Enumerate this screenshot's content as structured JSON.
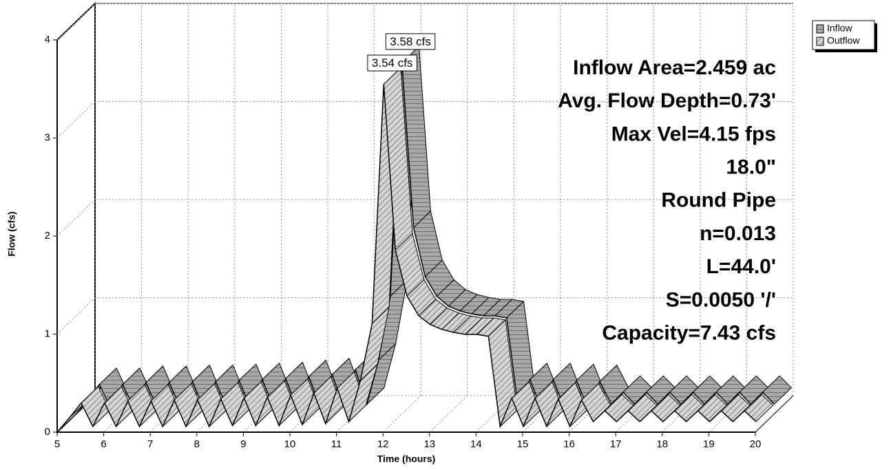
{
  "chart_data": {
    "type": "ribbon3d",
    "xlabel": "Time (hours)",
    "ylabel": "Flow (cfs)",
    "x": [
      5,
      5.25,
      5.5,
      5.75,
      6,
      6.25,
      6.5,
      6.75,
      7,
      7.25,
      7.5,
      7.75,
      8,
      8.25,
      8.5,
      8.75,
      9,
      9.25,
      9.5,
      9.75,
      10,
      10.25,
      10.5,
      10.75,
      11,
      11.25,
      11.5,
      11.75,
      12,
      12.25,
      12.5,
      12.75,
      13,
      13.25,
      13.5,
      13.75,
      14,
      14.25,
      14.5,
      14.75,
      15,
      15.25,
      15.5,
      15.75,
      16,
      16.25,
      16.5,
      16.75,
      17,
      17.25,
      17.5,
      17.75,
      18,
      18.25,
      18.5,
      18.75,
      19,
      19.25,
      19.5,
      19.75,
      20
    ],
    "series": [
      {
        "name": "Inflow",
        "color": "#a8a8a8",
        "peak_label": "3.58 cfs",
        "values": [
          0,
          0.15,
          0.3,
          0.05,
          0.3,
          0.05,
          0.32,
          0.05,
          0.32,
          0.05,
          0.33,
          0.05,
          0.33,
          0.05,
          0.34,
          0.06,
          0.35,
          0.06,
          0.36,
          0.06,
          0.38,
          0.07,
          0.4,
          0.08,
          0.45,
          0.1,
          0.55,
          1.2,
          3.58,
          1.9,
          1.4,
          1.2,
          1.1,
          1.05,
          1.02,
          1,
          1,
          0.98,
          0.05,
          0.35,
          0.05,
          0.35,
          0.05,
          0.34,
          0.05,
          0.33,
          0.1,
          0.22,
          0.1,
          0.22,
          0.1,
          0.22,
          0.1,
          0.22,
          0.1,
          0.22,
          0.1,
          0.22,
          0.1,
          0.22,
          0.1
        ]
      },
      {
        "name": "Outflow",
        "color": "#d4d4d4",
        "peak_label": "3.54 cfs",
        "values": [
          0,
          0.14,
          0.29,
          0.05,
          0.29,
          0.05,
          0.31,
          0.05,
          0.31,
          0.05,
          0.32,
          0.05,
          0.32,
          0.05,
          0.33,
          0.06,
          0.34,
          0.06,
          0.35,
          0.06,
          0.37,
          0.07,
          0.39,
          0.08,
          0.44,
          0.1,
          0.52,
          1.1,
          3.54,
          1.85,
          1.38,
          1.18,
          1.09,
          1.04,
          1.01,
          0.99,
          0.99,
          0.97,
          0.05,
          0.34,
          0.05,
          0.34,
          0.05,
          0.33,
          0.05,
          0.32,
          0.1,
          0.21,
          0.1,
          0.21,
          0.1,
          0.21,
          0.1,
          0.21,
          0.1,
          0.21,
          0.1,
          0.21,
          0.1,
          0.21,
          0.1
        ]
      }
    ],
    "xlim": [
      5,
      20
    ],
    "xticks": [
      5,
      6,
      7,
      8,
      9,
      10,
      11,
      12,
      13,
      14,
      15,
      16,
      17,
      18,
      19,
      20
    ],
    "ylim": [
      0,
      4
    ],
    "yticks": [
      0,
      1,
      2,
      3,
      4
    ],
    "grid": true,
    "legend": "upper right",
    "annotations": [
      "Inflow Area=2.459 ac",
      "Avg. Flow Depth=0.73'",
      "Max Vel=4.15 fps",
      "18.0\"",
      "Round Pipe",
      "n=0.013",
      "L=44.0'",
      "S=0.0050 '/'",
      "Capacity=7.43 cfs"
    ]
  }
}
